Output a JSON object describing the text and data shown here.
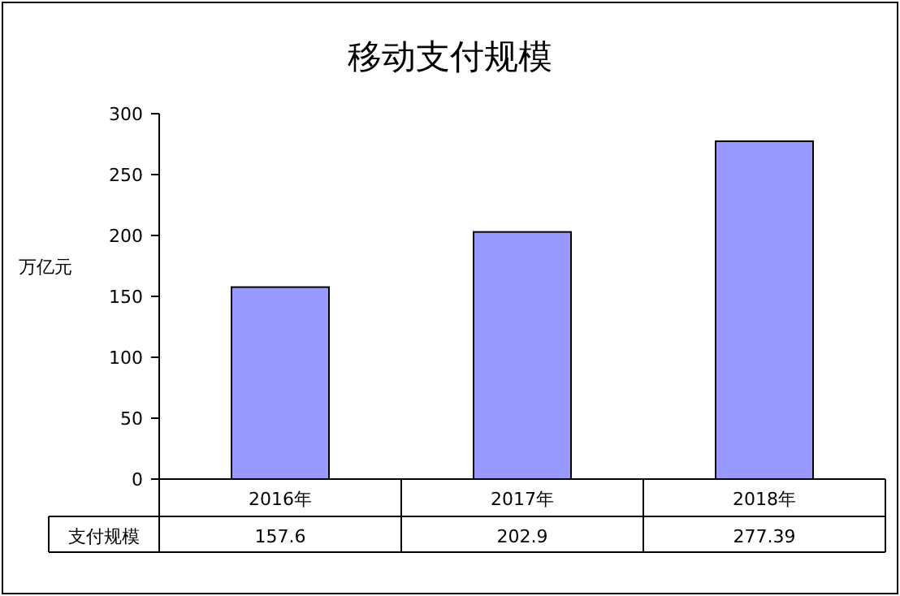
{
  "chart_data": {
    "type": "bar",
    "title": "移动支付规模",
    "ylabel": "万亿元",
    "categories": [
      "2016年",
      "2017年",
      "2018年"
    ],
    "series": [
      {
        "name": "支付规模",
        "color": "#9999ff",
        "values": [
          157.6,
          202.9,
          277.39
        ]
      }
    ],
    "ylim": [
      0,
      300
    ],
    "yticks": [
      0,
      50,
      100,
      150,
      200,
      250,
      300
    ],
    "grid": false,
    "legend": "bottom",
    "data_labels": true
  }
}
